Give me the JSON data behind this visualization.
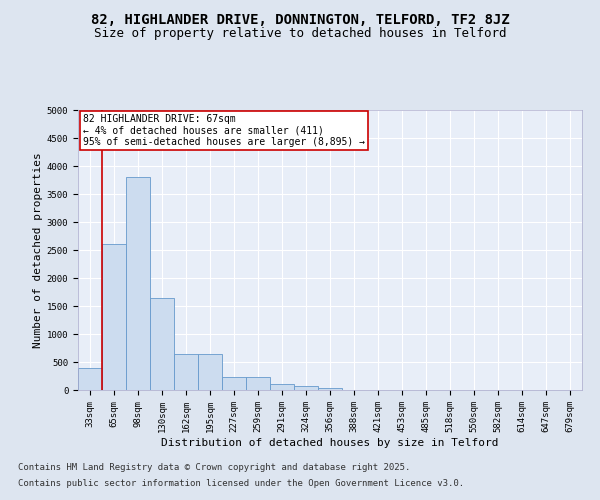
{
  "title_line1": "82, HIGHLANDER DRIVE, DONNINGTON, TELFORD, TF2 8JZ",
  "title_line2": "Size of property relative to detached houses in Telford",
  "xlabel": "Distribution of detached houses by size in Telford",
  "ylabel": "Number of detached properties",
  "categories": [
    "33sqm",
    "65sqm",
    "98sqm",
    "130sqm",
    "162sqm",
    "195sqm",
    "227sqm",
    "259sqm",
    "291sqm",
    "324sqm",
    "356sqm",
    "388sqm",
    "421sqm",
    "453sqm",
    "485sqm",
    "518sqm",
    "550sqm",
    "582sqm",
    "614sqm",
    "647sqm",
    "679sqm"
  ],
  "values": [
    400,
    2600,
    3800,
    1650,
    650,
    650,
    230,
    230,
    100,
    75,
    40,
    0,
    0,
    0,
    0,
    0,
    0,
    0,
    0,
    0,
    0
  ],
  "bar_color": "#ccdcef",
  "bar_edge_color": "#6699cc",
  "subject_label": "82 HIGHLANDER DRIVE: 67sqm",
  "annotation_line1": "← 4% of detached houses are smaller (411)",
  "annotation_line2": "95% of semi-detached houses are larger (8,895) →",
  "annotation_box_color": "#ffffff",
  "annotation_box_edge": "#cc0000",
  "vline_color": "#cc0000",
  "vline_x": 0.5,
  "ylim": [
    0,
    5000
  ],
  "yticks": [
    0,
    500,
    1000,
    1500,
    2000,
    2500,
    3000,
    3500,
    4000,
    4500,
    5000
  ],
  "footer_line1": "Contains HM Land Registry data © Crown copyright and database right 2025.",
  "footer_line2": "Contains public sector information licensed under the Open Government Licence v3.0.",
  "bg_color": "#dde5f0",
  "plot_bg_color": "#e8eef8",
  "grid_color": "#ffffff",
  "title_fontsize": 10,
  "subtitle_fontsize": 9,
  "axis_label_fontsize": 8,
  "tick_fontsize": 6.5,
  "annotation_fontsize": 7,
  "footer_fontsize": 6.5
}
